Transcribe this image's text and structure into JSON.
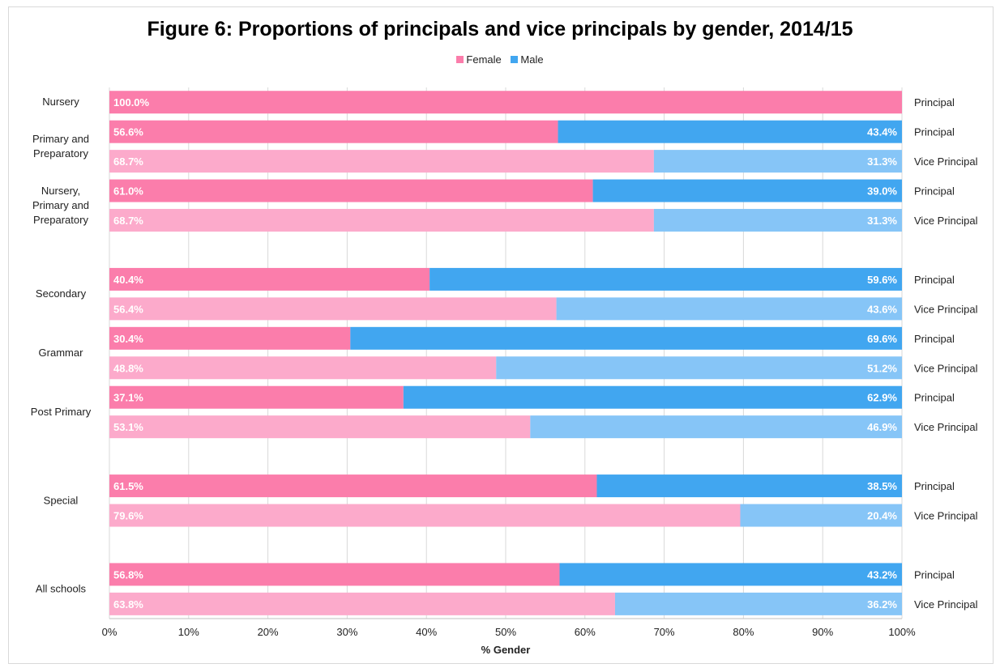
{
  "title": "Figure 6: Proportions of principals and vice principals by gender, 2014/15",
  "colors": {
    "female_principal": "#fb7dab",
    "female_vice": "#fcaacb",
    "male_principal": "#41a6f0",
    "male_vice": "#86c5f7",
    "grid": "#d9d9d9"
  },
  "chart_data": {
    "type": "bar",
    "orientation": "horizontal",
    "stacked": true,
    "xlabel": "% Gender",
    "xlim": [
      0,
      100
    ],
    "xticks": [
      "0%",
      "10%",
      "20%",
      "30%",
      "40%",
      "50%",
      "60%",
      "70%",
      "80%",
      "90%",
      "100%"
    ],
    "legend": {
      "position": "top",
      "entries": [
        "Female",
        "Male"
      ]
    },
    "series_names": [
      "Female",
      "Male"
    ],
    "groups": [
      {
        "label": "Nursery",
        "rows": [
          {
            "role": "Principal",
            "female": 100.0,
            "female_label": "100.0%",
            "male": 0.0,
            "male_label": ""
          }
        ]
      },
      {
        "label": "Primary and Preparatory",
        "rows": [
          {
            "role": "Principal",
            "female": 56.6,
            "female_label": "56.6%",
            "male": 43.4,
            "male_label": "43.4%"
          },
          {
            "role": "Vice Principal",
            "female": 68.7,
            "female_label": "68.7%",
            "male": 31.3,
            "male_label": "31.3%"
          }
        ]
      },
      {
        "label": "Nursery, Primary and Preparatory",
        "rows": [
          {
            "role": "Principal",
            "female": 61.0,
            "female_label": "61.0%",
            "male": 39.0,
            "male_label": "39.0%"
          },
          {
            "role": "Vice Principal",
            "female": 68.7,
            "female_label": "68.7%",
            "male": 31.3,
            "male_label": "31.3%"
          }
        ]
      },
      {
        "label": "Secondary",
        "rows": [
          {
            "role": "Principal",
            "female": 40.4,
            "female_label": "40.4%",
            "male": 59.6,
            "male_label": "59.6%"
          },
          {
            "role": "Vice Principal",
            "female": 56.4,
            "female_label": "56.4%",
            "male": 43.6,
            "male_label": "43.6%"
          }
        ]
      },
      {
        "label": "Grammar",
        "rows": [
          {
            "role": "Principal",
            "female": 30.4,
            "female_label": "30.4%",
            "male": 69.6,
            "male_label": "69.6%"
          },
          {
            "role": "Vice Principal",
            "female": 48.8,
            "female_label": "48.8%",
            "male": 51.2,
            "male_label": "51.2%"
          }
        ]
      },
      {
        "label": "Post Primary",
        "rows": [
          {
            "role": "Principal",
            "female": 37.1,
            "female_label": "37.1%",
            "male": 62.9,
            "male_label": "62.9%"
          },
          {
            "role": "Vice Principal",
            "female": 53.1,
            "female_label": "53.1%",
            "male": 46.9,
            "male_label": "46.9%"
          }
        ]
      },
      {
        "label": "Special",
        "rows": [
          {
            "role": "Principal",
            "female": 61.5,
            "female_label": "61.5%",
            "male": 38.5,
            "male_label": "38.5%"
          },
          {
            "role": "Vice Principal",
            "female": 79.6,
            "female_label": "79.6%",
            "male": 20.4,
            "male_label": "20.4%"
          }
        ]
      },
      {
        "label": "All schools",
        "rows": [
          {
            "role": "Principal",
            "female": 56.8,
            "female_label": "56.8%",
            "male": 43.2,
            "male_label": "43.2%"
          },
          {
            "role": "Vice Principal",
            "female": 63.8,
            "female_label": "63.8%",
            "male": 36.2,
            "male_label": "36.2%"
          }
        ]
      }
    ]
  }
}
